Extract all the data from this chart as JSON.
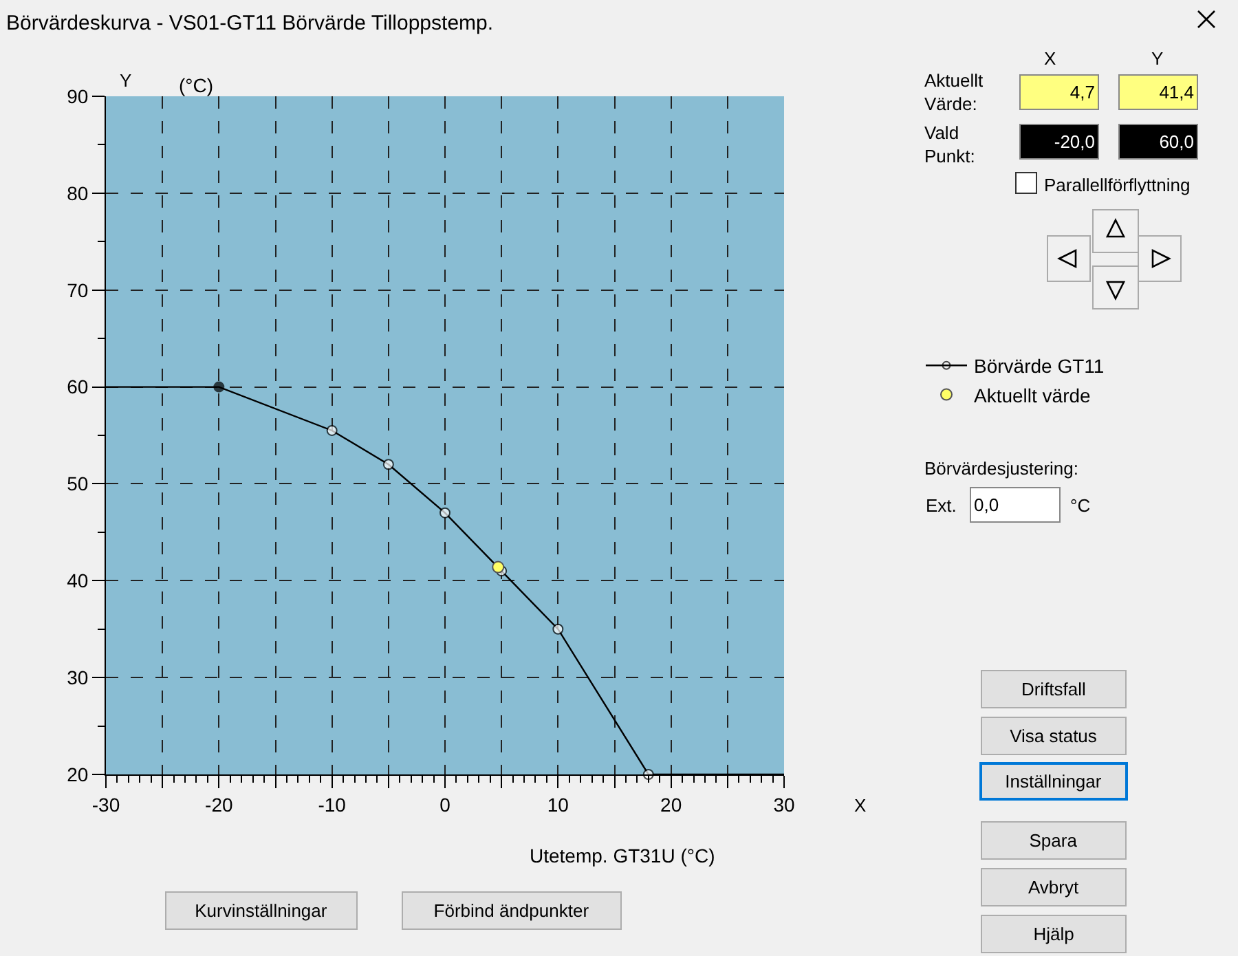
{
  "chart_data": {
    "type": "line",
    "title": "Börvärdeskurva - VS01-GT11 Börvärde Tilloppstemp.",
    "xlabel": "Utetemp. GT31U (°C)",
    "ylabel": "(°C)",
    "x": [
      -30,
      -20,
      -10,
      -5,
      0,
      5,
      10,
      18,
      30
    ],
    "series": [
      {
        "name": "Börvärde GT11",
        "type": "line",
        "color": "#000000",
        "colors": [
          null,
          "#000000",
          "#ffffff",
          "#ffffff",
          "#ffffff",
          "#ffffff",
          "#ffffff",
          "#ffffff",
          null
        ],
        "values": [
          60,
          60,
          55.5,
          52,
          47,
          41,
          35,
          20,
          20
        ]
      },
      {
        "name": "Aktuellt värde",
        "type": "scatter",
        "color": "#ffff66",
        "x": [
          4.7
        ],
        "values": [
          41.4
        ]
      }
    ],
    "xlim": [
      -30,
      30
    ],
    "ylim": [
      20,
      90
    ],
    "xticks": [
      -30,
      {
        "value": -25,
        "label": null
      },
      -20,
      {
        "value": -15,
        "label": null
      },
      -10,
      {
        "value": -5,
        "label": null
      },
      0,
      {
        "value": 5,
        "label": null
      },
      10,
      {
        "value": 15,
        "label": null
      },
      20,
      {
        "value": 25,
        "label": null
      },
      30
    ],
    "yticks": [
      20,
      30,
      40,
      50,
      60,
      70,
      80,
      90
    ],
    "grid": true,
    "legend": "right",
    "marker": "circle",
    "line_style": "solid",
    "annotations": [
      "Y",
      "X",
      "X",
      "Y",
      "Aktuellt Värde:",
      "Vald Punkt:",
      "4,7",
      "41,4",
      "-20,0",
      "60,0",
      "Parallellförflyttning",
      "Börvärdesjustering:",
      "Ext.",
      "0,0",
      "°C",
      "Driftsfall",
      "Visa status",
      "Inställningar",
      "Spara",
      "Avbryt",
      "Hjälp",
      "Kurvinställningar",
      "Förbind ändpunkter"
    ]
  }
}
